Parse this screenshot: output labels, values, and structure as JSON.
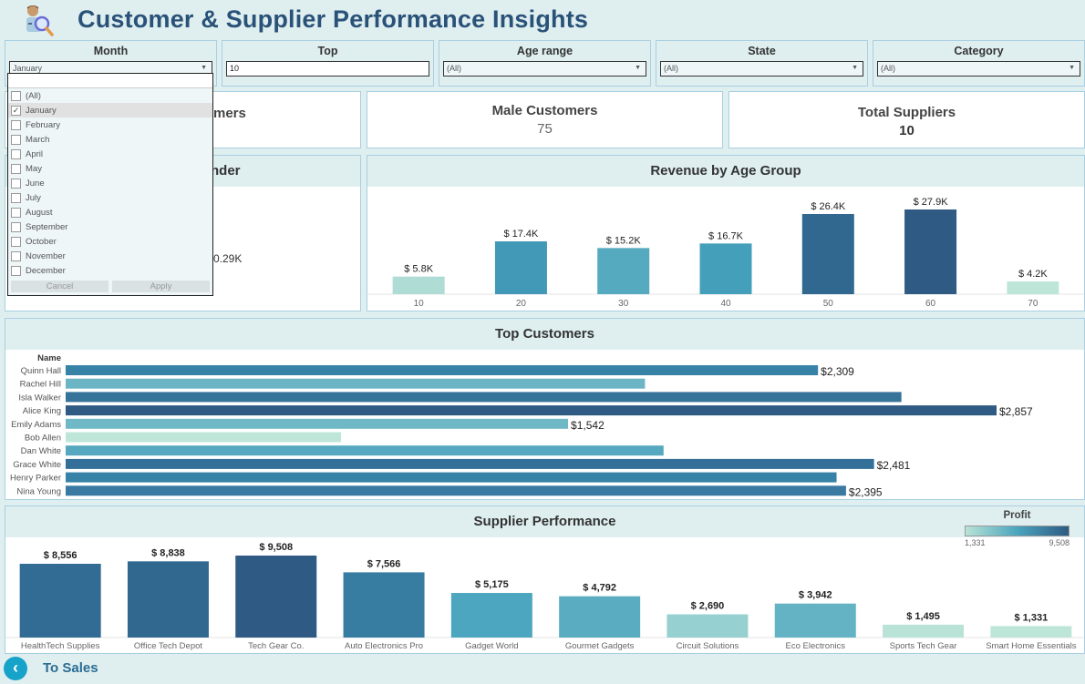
{
  "header": {
    "title": "Customer & Supplier Performance Insights",
    "logo_icon": "customer-search-icon"
  },
  "filters": [
    {
      "label": "Month",
      "value": "January",
      "type": "dropdown"
    },
    {
      "label": "Top",
      "value": "10",
      "type": "input"
    },
    {
      "label": "Age range",
      "value": "(All)",
      "type": "dropdown"
    },
    {
      "label": "State",
      "value": "(All)",
      "type": "dropdown"
    },
    {
      "label": "Category",
      "value": "(All)",
      "type": "dropdown"
    }
  ],
  "month_dropdown": {
    "search_value": "",
    "options": [
      {
        "label": "(All)",
        "checked": false
      },
      {
        "label": "January",
        "checked": true
      },
      {
        "label": "February",
        "checked": false
      },
      {
        "label": "March",
        "checked": false
      },
      {
        "label": "April",
        "checked": false
      },
      {
        "label": "May",
        "checked": false
      },
      {
        "label": "June",
        "checked": false
      },
      {
        "label": "July",
        "checked": false
      },
      {
        "label": "August",
        "checked": false
      },
      {
        "label": "September",
        "checked": false
      },
      {
        "label": "October",
        "checked": false
      },
      {
        "label": "November",
        "checked": false
      },
      {
        "label": "December",
        "checked": false
      }
    ],
    "cancel_label": "Cancel",
    "apply_label": "Apply"
  },
  "kpis": {
    "partial_title": "mers",
    "male": {
      "title": "Male Customers",
      "value": "75"
    },
    "suppliers": {
      "title": "Total Suppliers",
      "value": "10"
    }
  },
  "gender_panel": {
    "partial_title": "nder",
    "partial_value": "0.29K"
  },
  "chart_data": [
    {
      "type": "bar",
      "title": "Revenue by Age Group",
      "categories": [
        "10",
        "20",
        "30",
        "40",
        "50",
        "60",
        "70"
      ],
      "values": [
        5.8,
        17.4,
        15.2,
        16.7,
        26.4,
        27.9,
        4.2
      ],
      "labels": [
        "$ 5.8K",
        "$ 17.4K",
        "$ 15.2K",
        "$ 16.7K",
        "$ 26.4K",
        "$ 27.9K",
        "$ 4.2K"
      ],
      "unit": "K USD",
      "xlabel": "",
      "ylabel": "",
      "ylim": [
        0,
        30
      ],
      "colors": [
        "#b0dcd6",
        "#4198b7",
        "#55aabf",
        "#449fbb",
        "#306890",
        "#2e5a83",
        "#bde6d9"
      ]
    },
    {
      "type": "bar",
      "orientation": "horizontal",
      "title": "Top Customers",
      "column_header": "Name",
      "categories": [
        "Quinn Hall",
        "Rachel Hill",
        "Isla Walker",
        "Alice King",
        "Emily Adams",
        "Bob Allen",
        "Dan White",
        "Grace White",
        "Henry Parker",
        "Nina Young"
      ],
      "values": [
        2309,
        1778,
        2565,
        2857,
        1542,
        845,
        1835,
        2481,
        2366,
        2395
      ],
      "labels": [
        "$2,309",
        "",
        "",
        "$2,857",
        "$1,542",
        "",
        "",
        "$2,481",
        "",
        "$2,395"
      ],
      "xlim": [
        0,
        2857
      ],
      "colors": [
        "#3782a7",
        "#6bb5c4",
        "#357399",
        "#2e5a83",
        "#6fb8c5",
        "#bde6d9",
        "#55a8bf",
        "#336f98",
        "#3782a7",
        "#3a7aa2"
      ]
    },
    {
      "type": "bar",
      "title": "Supplier Performance",
      "categories": [
        "HealthTech Supplies",
        "Office Tech Depot",
        "Tech Gear Co.",
        "Auto Electronics Pro",
        "Gadget World",
        "Gourmet Gadgets",
        "Circuit Solutions",
        "Eco Electronics",
        "Sports Tech Gear",
        "Smart Home Essentials"
      ],
      "values": [
        8556,
        8838,
        9508,
        7566,
        5175,
        4792,
        2690,
        3942,
        1495,
        1331
      ],
      "labels": [
        "$ 8,556",
        "$ 8,838",
        "$ 9,508",
        "$ 7,566",
        "$ 5,175",
        "$ 4,792",
        "$ 2,690",
        "$ 3,942",
        "$ 1,495",
        "$ 1,331"
      ],
      "ylim": [
        0,
        9508
      ],
      "colors": [
        "#326b93",
        "#316890",
        "#2e5a83",
        "#377ca1",
        "#4da6bf",
        "#5aadc1",
        "#97d0d0",
        "#63b3c4",
        "#b9e3d6",
        "#bde6d9"
      ],
      "legend": {
        "title": "Profit",
        "min_label": "1,331",
        "max_label": "9,508",
        "placement": "top-right",
        "gradient": [
          "#b9e3d6",
          "#4aa5be",
          "#2e5a83"
        ]
      }
    }
  ],
  "footer": {
    "back_label": "To Sales",
    "back_icon": "chevron-left-icon"
  }
}
